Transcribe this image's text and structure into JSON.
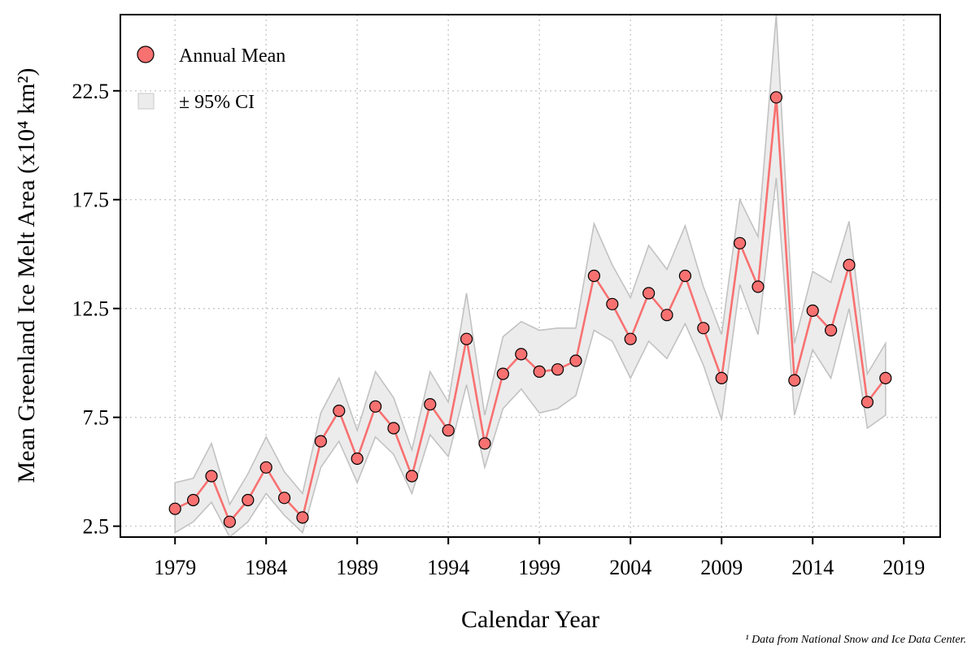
{
  "chart_data": {
    "type": "line",
    "xlabel": "Calendar Year",
    "ylabel": "Mean Greenland Ice Melt Area (x10⁴ km²)",
    "xlim": [
      1976,
      2021
    ],
    "ylim": [
      2.0,
      26.0
    ],
    "x_ticks": [
      "1979",
      "1984",
      "1989",
      "1994",
      "1999",
      "2004",
      "2009",
      "2014",
      "2019"
    ],
    "y_ticks": [
      "2.5",
      "7.5",
      "12.5",
      "17.5",
      "22.5"
    ],
    "grid": true,
    "legend_position": "top-left",
    "series": [
      {
        "name": "Annual Mean",
        "color": "#f87171",
        "x": [
          1979,
          1980,
          1981,
          1982,
          1983,
          1984,
          1985,
          1986,
          1987,
          1988,
          1989,
          1990,
          1991,
          1992,
          1993,
          1994,
          1995,
          1996,
          1997,
          1998,
          1999,
          2000,
          2001,
          2002,
          2003,
          2004,
          2005,
          2006,
          2007,
          2008,
          2009,
          2010,
          2011,
          2012,
          2013,
          2014,
          2015,
          2016,
          2017,
          2018
        ],
        "values": [
          3.3,
          3.7,
          4.8,
          2.7,
          3.7,
          5.2,
          3.8,
          2.9,
          6.4,
          7.8,
          5.6,
          8.0,
          7.0,
          4.8,
          8.1,
          6.9,
          11.1,
          6.3,
          9.5,
          10.4,
          9.6,
          9.7,
          10.1,
          14.0,
          12.7,
          11.1,
          13.2,
          12.2,
          14.0,
          11.6,
          9.3,
          15.5,
          13.5,
          22.2,
          9.2,
          12.4,
          11.5,
          14.5,
          8.2,
          9.3
        ]
      },
      {
        "name": "± 95% CI",
        "color": "#ececec",
        "x": [
          1979,
          1980,
          1981,
          1982,
          1983,
          1984,
          1985,
          1986,
          1987,
          1988,
          1989,
          1990,
          1991,
          1992,
          1993,
          1994,
          1995,
          1996,
          1997,
          1998,
          1999,
          2000,
          2001,
          2002,
          2003,
          2004,
          2005,
          2006,
          2007,
          2008,
          2009,
          2010,
          2011,
          2012,
          2013,
          2014,
          2015,
          2016,
          2017,
          2018
        ],
        "lower": [
          2.2,
          2.7,
          3.6,
          2.0,
          2.7,
          4.0,
          3.0,
          2.2,
          5.2,
          6.4,
          4.5,
          6.6,
          5.8,
          4.0,
          6.7,
          5.7,
          9.0,
          5.2,
          7.9,
          8.8,
          7.7,
          7.9,
          8.5,
          11.5,
          11.0,
          9.3,
          11.0,
          10.2,
          11.8,
          9.9,
          7.4,
          13.6,
          11.3,
          18.5,
          7.6,
          10.6,
          9.3,
          12.5,
          7.0,
          7.6
        ],
        "upper": [
          4.5,
          4.7,
          6.3,
          3.5,
          4.9,
          6.6,
          5.0,
          4.0,
          7.7,
          9.3,
          6.9,
          9.6,
          8.4,
          6.0,
          9.6,
          8.2,
          13.2,
          7.6,
          11.2,
          11.9,
          11.5,
          11.6,
          11.6,
          16.4,
          14.5,
          13.0,
          15.4,
          14.3,
          16.3,
          13.5,
          11.3,
          17.5,
          15.8,
          26.0,
          10.9,
          14.2,
          13.7,
          16.5,
          9.5,
          10.9
        ]
      }
    ],
    "footnote": "¹ Data from National Snow and Ice Data Center."
  }
}
